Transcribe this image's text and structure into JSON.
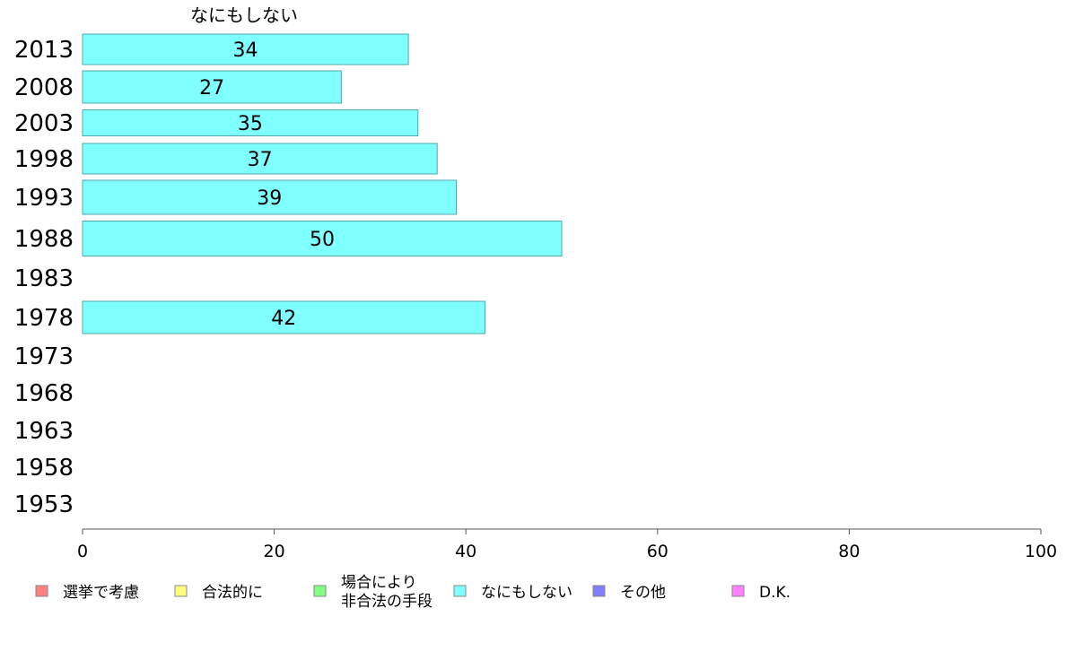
{
  "chart_data": {
    "type": "bar",
    "orientation": "horizontal",
    "stacked": true,
    "title": "なにもしない",
    "categories": [
      "2013",
      "2008",
      "2003",
      "1998",
      "1993",
      "1988",
      "1983",
      "1978",
      "1973",
      "1968",
      "1963",
      "1958",
      "1953"
    ],
    "series": [
      {
        "name": "選挙で考慮",
        "color": "#ff8080",
        "values": [
          null,
          null,
          null,
          null,
          null,
          null,
          null,
          null,
          null,
          null,
          null,
          null,
          null
        ]
      },
      {
        "name": "合法的に",
        "color": "#ffff80",
        "values": [
          null,
          null,
          null,
          null,
          null,
          null,
          null,
          null,
          null,
          null,
          null,
          null,
          null
        ]
      },
      {
        "name": "場合により\n非合法の手段",
        "color": "#80ff80",
        "values": [
          null,
          null,
          null,
          null,
          null,
          null,
          null,
          null,
          null,
          null,
          null,
          null,
          null
        ]
      },
      {
        "name": "なにもしない",
        "color": "#80ffff",
        "values": [
          34,
          27,
          35,
          37,
          39,
          50,
          null,
          42,
          null,
          null,
          null,
          null,
          null
        ]
      },
      {
        "name": "その他",
        "color": "#8080ff",
        "values": [
          null,
          null,
          null,
          null,
          null,
          null,
          null,
          null,
          null,
          null,
          null,
          null,
          null
        ]
      },
      {
        "name": "D.K.",
        "color": "#ff80ff",
        "values": [
          null,
          null,
          null,
          null,
          null,
          null,
          null,
          null,
          null,
          null,
          null,
          null,
          null
        ]
      }
    ],
    "xlim": [
      0,
      100
    ],
    "xticks": [
      "0",
      "20",
      "40",
      "60",
      "80",
      "100"
    ],
    "grid": false,
    "legend_position": "bottom"
  }
}
